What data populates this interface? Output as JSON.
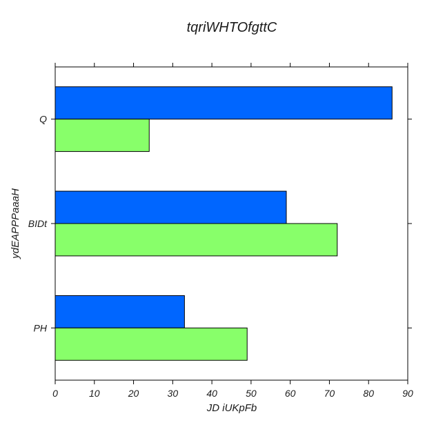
{
  "chart_data": {
    "type": "bar",
    "orientation": "horizontal",
    "title": "tqriWHTOfgttC",
    "xlabel": "JD iUKpFb",
    "ylabel": "ydEAPPPaaaH",
    "categories": [
      "Q",
      "BIDt",
      "PH"
    ],
    "series": [
      {
        "color": "#0066ff",
        "values": [
          86,
          59,
          33
        ]
      },
      {
        "color": "#88ff6a",
        "values": [
          24,
          72,
          49
        ]
      }
    ],
    "xlim": [
      0,
      90
    ],
    "xticks": [
      0,
      10,
      20,
      30,
      40,
      50,
      60,
      70,
      80,
      90
    ],
    "grid": false
  }
}
